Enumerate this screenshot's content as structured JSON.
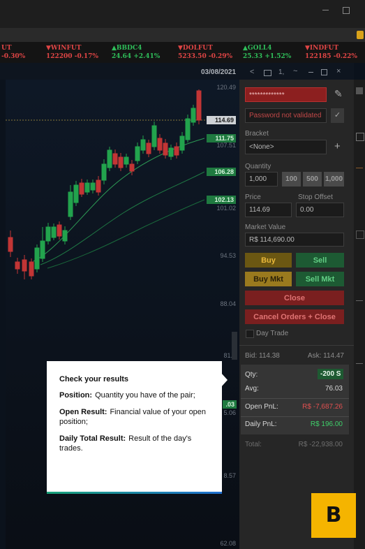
{
  "ticker": [
    {
      "symbol": "UT",
      "quote": "-0.30%",
      "color": "#e04545"
    },
    {
      "symbol": "▼WINFUT",
      "quote": "122200 -0.17%",
      "color": "#e04545"
    },
    {
      "symbol": "▲BBDC4",
      "quote": "24.64 +2.41%",
      "color": "#2fbf5a"
    },
    {
      "symbol": "▼DOLFUT",
      "quote": "5233.50 -0.29%",
      "color": "#e04545"
    },
    {
      "symbol": "▲GOLL4",
      "quote": "25.33 +1.52%",
      "color": "#2fbf5a"
    },
    {
      "symbol": "▼INDFUT",
      "quote": "122185 -0.22%",
      "color": "#e04545"
    }
  ],
  "toolbar": {
    "date": "03/08/2021",
    "count": "1,"
  },
  "chart": {
    "axis_labels": [
      "120.49",
      "107.51",
      "101.02",
      "94.53",
      "88.04",
      "81.5",
      "5.06",
      "8.57",
      "62.08"
    ],
    "price_tags": [
      "114.69",
      "111.75",
      "106.28",
      "102.13",
      ".03"
    ]
  },
  "order_panel": {
    "account": "*************",
    "password": "Password not validated",
    "bracket_label": "Bracket",
    "bracket": "<None>",
    "quantity_label": "Quantity",
    "quantity": "1,000",
    "quick_quantities": [
      "100",
      "500",
      "1,000"
    ],
    "price_label": "Price",
    "stop_offset_label": "Stop Offset",
    "price": "114.69",
    "stop_offset": "0.00",
    "market_value_label": "Market Value",
    "market_value": "R$ 114,690.00",
    "buttons": {
      "buy": "Buy",
      "sell": "Sell",
      "buy_mkt": "Buy Mkt",
      "sell_mkt": "Sell Mkt",
      "close": "Close",
      "cancel_close": "Cancel Orders + Close"
    },
    "day_trade": "Day Trade",
    "bid": "Bid: 114.38",
    "ask": "Ask: 114.47"
  },
  "results": {
    "rows": [
      [
        "Qty:",
        "-200 S"
      ],
      [
        "Avg:",
        "76.03"
      ],
      [
        "Open PnL:",
        "R$ -7,687.26"
      ],
      [
        "Daily PnL:",
        "R$ 196.00"
      ]
    ],
    "total": [
      "Total:",
      "R$ -22,938.00"
    ]
  },
  "tooltip": {
    "title": "Check your results",
    "items": [
      {
        "term": "Position:",
        "text": "Quantity you have of the pair;"
      },
      {
        "term": "Open Result:",
        "text": "Financial value of your open position;"
      },
      {
        "term": "Daily Total Result:",
        "text": "Result of the day's trades."
      }
    ]
  },
  "badge": "B"
}
